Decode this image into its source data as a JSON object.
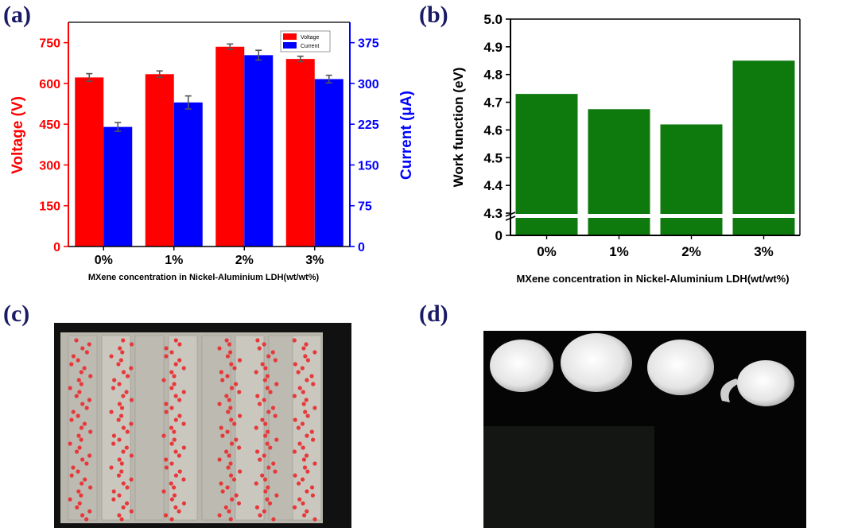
{
  "panels": {
    "a": "(a)",
    "b": "(b)",
    "c": "(c)",
    "d": "(d)"
  },
  "chart_data": [
    {
      "type": "bar",
      "categories": [
        "0%",
        "1%",
        "2%",
        "3%"
      ],
      "xlabel": "MXene concentration in Nickel-Aluminium LDH(wt/wt%)",
      "ylabel": "Voltage (V)",
      "y2label": "Current (μA)",
      "ylim": [
        0,
        825
      ],
      "y2lim": [
        0,
        412.5
      ],
      "yticks": [
        0,
        150,
        300,
        450,
        600,
        750
      ],
      "y2ticks": [
        0,
        75,
        150,
        225,
        300,
        375
      ],
      "legend_position": "top-right",
      "series": [
        {
          "name": "Voltage",
          "axis": "left",
          "color": "#ff0000",
          "values": [
            622,
            634,
            735,
            690
          ],
          "errors": [
            14,
            12,
            10,
            10
          ]
        },
        {
          "name": "Current",
          "axis": "right",
          "color": "#0000ff",
          "values": [
            220,
            265,
            352,
            308
          ],
          "errors": [
            8,
            12,
            9,
            7
          ]
        }
      ]
    },
    {
      "type": "bar",
      "categories": [
        "0%",
        "1%",
        "2%",
        "3%"
      ],
      "xlabel": "MXene concentration in Nickel-Aluminium LDH(wt/wt%)",
      "ylabel": "Work function (eV)",
      "ylim": [
        0,
        5.0
      ],
      "axis_break": [
        0,
        4.3
      ],
      "yticks": [
        "0",
        "4.3",
        "4.4",
        "4.5",
        "4.6",
        "4.7",
        "4.8",
        "4.9",
        "5.0"
      ],
      "color": "#0e7a0e",
      "values": [
        4.73,
        4.675,
        4.62,
        4.85
      ]
    }
  ]
}
